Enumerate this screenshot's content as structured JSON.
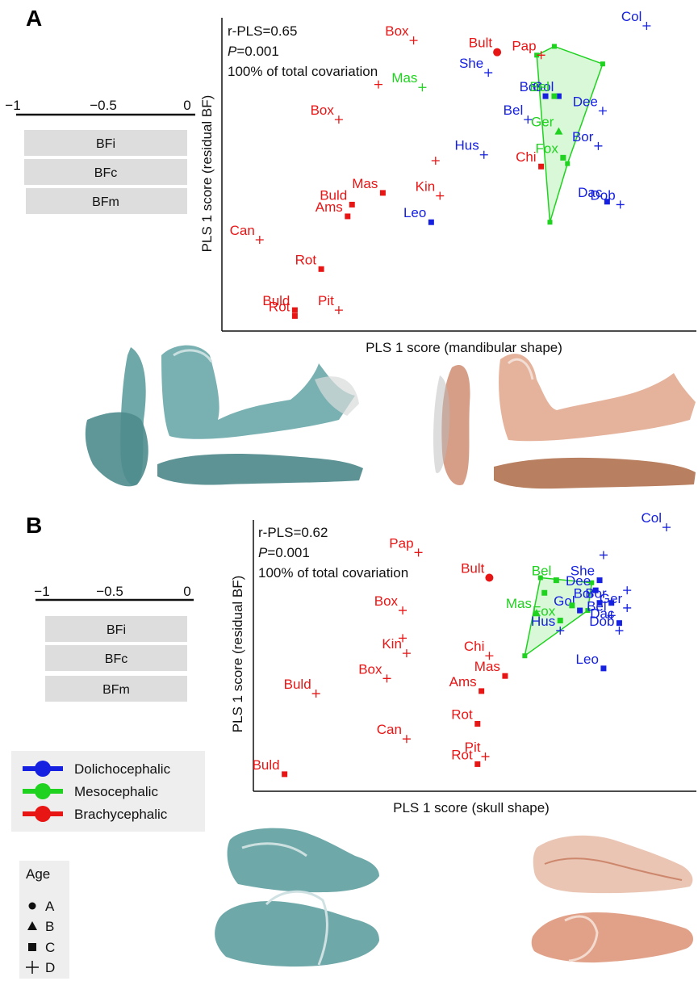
{
  "colors": {
    "Dolichocephalic": "#1520e0",
    "Mesocephalic": "#1fd21f",
    "Brachycephalic": "#e81515",
    "hull_fill": "#c8f5c8",
    "hull_stroke": "#1fd21f",
    "box_fill": "#dddddd",
    "teal_model": "#5f9ea0",
    "copper_model": "#d98a6a"
  },
  "panel_A_letter": "A",
  "panel_B_letter": "B",
  "scale": {
    "ticks": [
      "−1",
      "−0.5",
      "0"
    ],
    "boxes": [
      "BFi",
      "BFc",
      "BFm"
    ]
  },
  "legend": {
    "categories": [
      "Dolichocephalic",
      "Mesocephalic",
      "Brachycephalic"
    ],
    "age_title": "Age",
    "ages": [
      {
        "symbol": "circle",
        "label": "A"
      },
      {
        "symbol": "triangle",
        "label": "B"
      },
      {
        "symbol": "square",
        "label": "C"
      },
      {
        "symbol": "plus",
        "label": "D"
      }
    ]
  },
  "figure_images": {
    "panel_A": [
      "mandible-teal-model",
      "mandible-copper-model"
    ],
    "panel_B": [
      "skull-teal-model",
      "skull-copper-model"
    ]
  },
  "chart_data": [
    {
      "type": "scatter",
      "panel": "A",
      "title": "",
      "stats": {
        "r_pls": "r-PLS=0.65",
        "p_prefix": "P",
        "p_value": "=0.001",
        "covariation": "100% of total covariation"
      },
      "xlabel": "PLS 1 score (mandibular shape)",
      "ylabel": "PLS 1 score (residual BF)",
      "xlim": [
        0,
        100
      ],
      "ylim": [
        0,
        100
      ],
      "grid": false,
      "hull": [
        [
          71,
          93
        ],
        [
          82,
          87
        ],
        [
          74,
          53
        ],
        [
          70,
          33
        ],
        [
          67,
          90
        ]
      ],
      "points": [
        {
          "x": 92,
          "y": 100,
          "label": "Col",
          "group": "Dolichocephalic",
          "age": "D"
        },
        {
          "x": 56,
          "y": 84,
          "label": "She",
          "group": "Dolichocephalic",
          "age": "D"
        },
        {
          "x": 69,
          "y": 76,
          "label": "Bor",
          "group": "Dolichocephalic",
          "age": "C"
        },
        {
          "x": 72,
          "y": 76,
          "label": "Gol",
          "group": "Dolichocephalic",
          "age": "C"
        },
        {
          "x": 82,
          "y": 71,
          "label": "Dee",
          "group": "Dolichocephalic",
          "age": "D"
        },
        {
          "x": 65,
          "y": 68,
          "label": "Bel",
          "group": "Dolichocephalic",
          "age": "D"
        },
        {
          "x": 81,
          "y": 59,
          "label": "Bor",
          "group": "Dolichocephalic",
          "age": "D"
        },
        {
          "x": 55,
          "y": 56,
          "label": "Hus",
          "group": "Dolichocephalic",
          "age": "D"
        },
        {
          "x": 83,
          "y": 40,
          "label": "Dac",
          "group": "Dolichocephalic",
          "age": "C"
        },
        {
          "x": 86,
          "y": 39,
          "label": "Dob",
          "group": "Dolichocephalic",
          "age": "D"
        },
        {
          "x": 43,
          "y": 33,
          "label": "Leo",
          "group": "Dolichocephalic",
          "age": "C"
        },
        {
          "x": 71,
          "y": 76,
          "label": "Bel",
          "group": "Mesocephalic",
          "age": "C"
        },
        {
          "x": 41,
          "y": 79,
          "label": "Mas",
          "group": "Mesocephalic",
          "age": "D"
        },
        {
          "x": 72,
          "y": 64,
          "label": "Ger",
          "group": "Mesocephalic",
          "age": "B"
        },
        {
          "x": 73,
          "y": 55,
          "label": "Fox",
          "group": "Mesocephalic",
          "age": "C"
        },
        {
          "x": 39,
          "y": 95,
          "label": "Box",
          "group": "Brachycephalic",
          "age": "D"
        },
        {
          "x": 58,
          "y": 91,
          "label": "Bult",
          "group": "Brachycephalic",
          "age": "A"
        },
        {
          "x": 68,
          "y": 90,
          "label": "Pap",
          "group": "Brachycephalic",
          "age": "D"
        },
        {
          "x": 31,
          "y": 80,
          "label": "",
          "group": "Brachycephalic",
          "age": "D"
        },
        {
          "x": 22,
          "y": 68,
          "label": "Box",
          "group": "Brachycephalic",
          "age": "D"
        },
        {
          "x": 44,
          "y": 54,
          "label": "",
          "group": "Brachycephalic",
          "age": "D"
        },
        {
          "x": 68,
          "y": 52,
          "label": "Chi",
          "group": "Brachycephalic",
          "age": "C"
        },
        {
          "x": 32,
          "y": 43,
          "label": "Mas",
          "group": "Brachycephalic",
          "age": "C"
        },
        {
          "x": 45,
          "y": 42,
          "label": "Kin",
          "group": "Brachycephalic",
          "age": "D"
        },
        {
          "x": 25,
          "y": 39,
          "label": "Buld",
          "group": "Brachycephalic",
          "age": "C"
        },
        {
          "x": 24,
          "y": 35,
          "label": "Ams",
          "group": "Brachycephalic",
          "age": "C"
        },
        {
          "x": 4,
          "y": 27,
          "label": "Can",
          "group": "Brachycephalic",
          "age": "D"
        },
        {
          "x": 18,
          "y": 17,
          "label": "Rot",
          "group": "Brachycephalic",
          "age": "C"
        },
        {
          "x": 12,
          "y": 3,
          "label": "Buld",
          "group": "Brachycephalic",
          "age": "C"
        },
        {
          "x": 12,
          "y": 1,
          "label": "Rot",
          "group": "Brachycephalic",
          "age": "C"
        },
        {
          "x": 22,
          "y": 3,
          "label": "Pit",
          "group": "Brachycephalic",
          "age": "D"
        }
      ]
    },
    {
      "type": "scatter",
      "panel": "B",
      "title": "",
      "stats": {
        "r_pls": "r-PLS=0.62",
        "p_prefix": "P",
        "p_value": "=0.001",
        "covariation": "100% of total covariation"
      },
      "xlabel": "PLS 1 score (skull shape)",
      "ylabel": "PLS 1 score (residual BF)",
      "xlim": [
        0,
        100
      ],
      "ylim": [
        0,
        100
      ],
      "grid": false,
      "hull": [
        [
          68,
          79
        ],
        [
          81,
          77
        ],
        [
          80,
          66
        ],
        [
          64,
          48
        ]
      ],
      "points": [
        {
          "x": 100,
          "y": 99,
          "label": "Col",
          "group": "Dolichocephalic",
          "age": "D"
        },
        {
          "x": 84,
          "y": 88,
          "label": "",
          "group": "Dolichocephalic",
          "age": "D"
        },
        {
          "x": 83,
          "y": 78,
          "label": "She",
          "group": "Dolichocephalic",
          "age": "C"
        },
        {
          "x": 82,
          "y": 74,
          "label": "Dee",
          "group": "Dolichocephalic",
          "age": "C"
        },
        {
          "x": 90,
          "y": 74,
          "label": "",
          "group": "Dolichocephalic",
          "age": "D"
        },
        {
          "x": 83,
          "y": 69,
          "label": "Bor",
          "group": "Dolichocephalic",
          "age": "C"
        },
        {
          "x": 86,
          "y": 69,
          "label": "Bor",
          "group": "Dolichocephalic",
          "age": "C"
        },
        {
          "x": 90,
          "y": 67,
          "label": "Ger",
          "group": "Dolichocephalic",
          "age": "D"
        },
        {
          "x": 78,
          "y": 66,
          "label": "Gol",
          "group": "Dolichocephalic",
          "age": "C"
        },
        {
          "x": 86,
          "y": 64,
          "label": "Bel",
          "group": "Dolichocephalic",
          "age": "D"
        },
        {
          "x": 88,
          "y": 61,
          "label": "Dac",
          "group": "Dolichocephalic",
          "age": "C"
        },
        {
          "x": 88,
          "y": 58,
          "label": "Dob",
          "group": "Dolichocephalic",
          "age": "D"
        },
        {
          "x": 73,
          "y": 58,
          "label": "Hus",
          "group": "Dolichocephalic",
          "age": "D"
        },
        {
          "x": 84,
          "y": 43,
          "label": "Leo",
          "group": "Dolichocephalic",
          "age": "C"
        },
        {
          "x": 72,
          "y": 78,
          "label": "Bel",
          "group": "Mesocephalic",
          "age": "C"
        },
        {
          "x": 67,
          "y": 65,
          "label": "Mas",
          "group": "Mesocephalic",
          "age": "B"
        },
        {
          "x": 73,
          "y": 62,
          "label": "Fox",
          "group": "Mesocephalic",
          "age": "C"
        },
        {
          "x": 76,
          "y": 68,
          "label": "",
          "group": "Mesocephalic",
          "age": "C"
        },
        {
          "x": 69,
          "y": 73,
          "label": "",
          "group": "Mesocephalic",
          "age": "C"
        },
        {
          "x": 37,
          "y": 89,
          "label": "Pap",
          "group": "Brachycephalic",
          "age": "D"
        },
        {
          "x": 55,
          "y": 79,
          "label": "Bult",
          "group": "Brachycephalic",
          "age": "A"
        },
        {
          "x": 33,
          "y": 66,
          "label": "Box",
          "group": "Brachycephalic",
          "age": "D"
        },
        {
          "x": 33,
          "y": 55,
          "label": "",
          "group": "Brachycephalic",
          "age": "D"
        },
        {
          "x": 34,
          "y": 49,
          "label": "Kin",
          "group": "Brachycephalic",
          "age": "D"
        },
        {
          "x": 55,
          "y": 48,
          "label": "Chi",
          "group": "Brachycephalic",
          "age": "D"
        },
        {
          "x": 29,
          "y": 39,
          "label": "Box",
          "group": "Brachycephalic",
          "age": "D"
        },
        {
          "x": 59,
          "y": 40,
          "label": "Mas",
          "group": "Brachycephalic",
          "age": "C"
        },
        {
          "x": 53,
          "y": 34,
          "label": "Ams",
          "group": "Brachycephalic",
          "age": "C"
        },
        {
          "x": 11,
          "y": 33,
          "label": "Buld",
          "group": "Brachycephalic",
          "age": "D"
        },
        {
          "x": 52,
          "y": 21,
          "label": "Rot",
          "group": "Brachycephalic",
          "age": "C"
        },
        {
          "x": 34,
          "y": 15,
          "label": "Can",
          "group": "Brachycephalic",
          "age": "D"
        },
        {
          "x": 54,
          "y": 8,
          "label": "Pit",
          "group": "Brachycephalic",
          "age": "D"
        },
        {
          "x": 52,
          "y": 5,
          "label": "Rot",
          "group": "Brachycephalic",
          "age": "C"
        },
        {
          "x": 3,
          "y": 1,
          "label": "Buld",
          "group": "Brachycephalic",
          "age": "C"
        }
      ]
    }
  ]
}
